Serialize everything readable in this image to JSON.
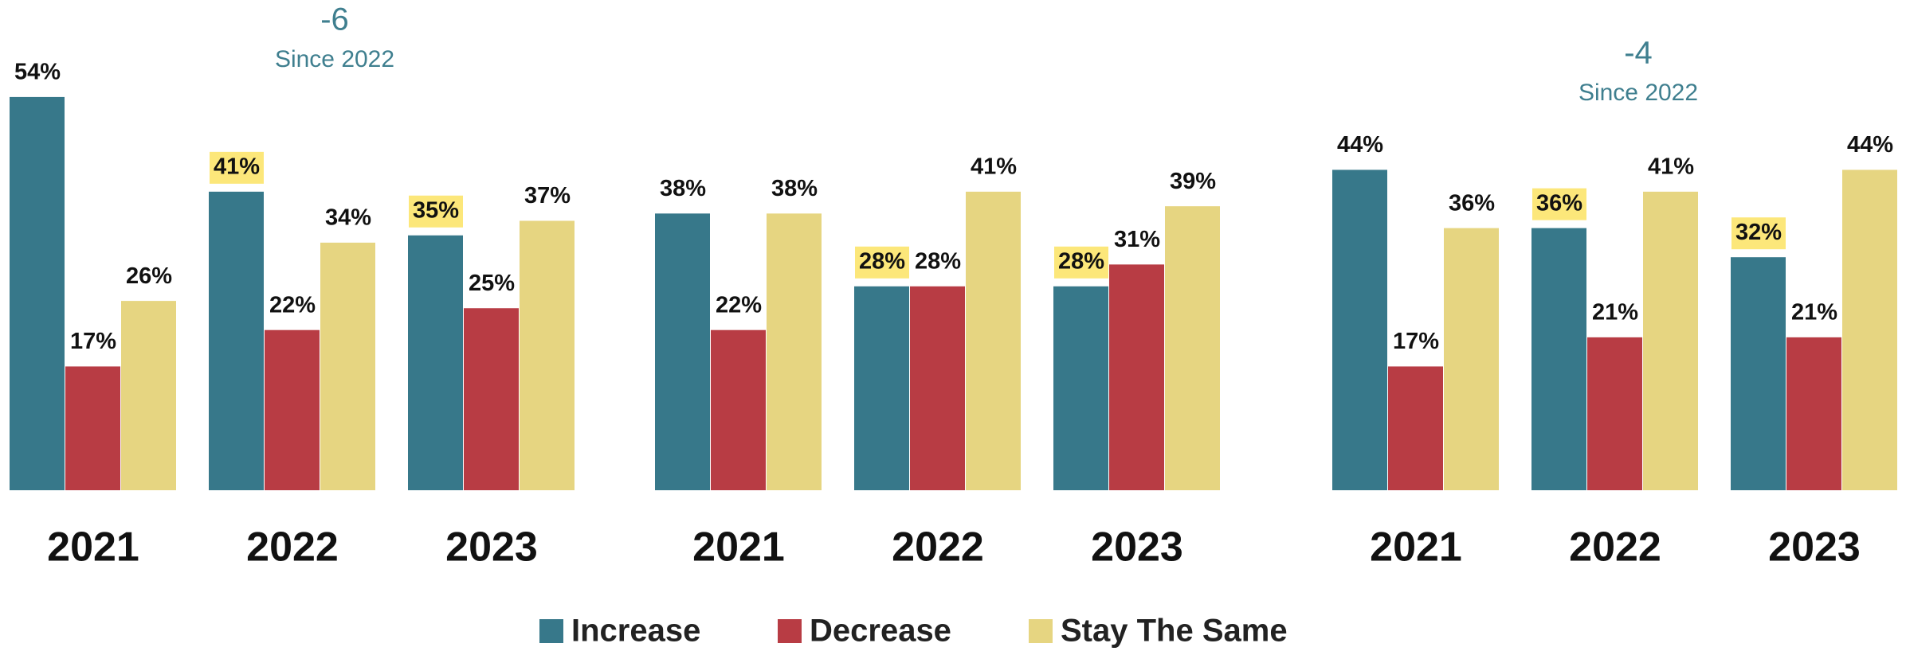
{
  "chart_data": [
    {
      "type": "bar",
      "categories": [
        "2021",
        "2022",
        "2023"
      ],
      "annotation": {
        "value": "-6",
        "note": "Since 2022"
      },
      "series": [
        {
          "name": "Increase",
          "color": "#37788a",
          "values": [
            54,
            41,
            35
          ],
          "value_labels": [
            "54%",
            "41%",
            "35%"
          ],
          "label_highlight": [
            false,
            true,
            true
          ]
        },
        {
          "name": "Decrease",
          "color": "#b83c44",
          "values": [
            17,
            22,
            25
          ],
          "value_labels": [
            "17%",
            "22%",
            "25%"
          ]
        },
        {
          "name": "Stay The Same",
          "color": "#e6d581",
          "values": [
            26,
            34,
            37
          ],
          "value_labels": [
            "26%",
            "34%",
            "37%"
          ]
        }
      ]
    },
    {
      "type": "bar",
      "categories": [
        "2021",
        "2022",
        "2023"
      ],
      "series": [
        {
          "name": "Increase",
          "color": "#37788a",
          "values": [
            38,
            28,
            28
          ],
          "value_labels": [
            "38%",
            "28%",
            "28%"
          ],
          "label_highlight": [
            false,
            true,
            true
          ]
        },
        {
          "name": "Decrease",
          "color": "#b83c44",
          "values": [
            22,
            28,
            31
          ],
          "value_labels": [
            "22%",
            "28%",
            "31%"
          ]
        },
        {
          "name": "Stay The Same",
          "color": "#e6d581",
          "values": [
            38,
            41,
            39
          ],
          "value_labels": [
            "38%",
            "41%",
            "39%"
          ]
        }
      ]
    },
    {
      "type": "bar",
      "categories": [
        "2021",
        "2022",
        "2023"
      ],
      "annotation": {
        "value": "-4",
        "note": "Since 2022"
      },
      "series": [
        {
          "name": "Increase",
          "color": "#37788a",
          "values": [
            44,
            36,
            32
          ],
          "value_labels": [
            "44%",
            "36%",
            "32%"
          ],
          "label_highlight": [
            false,
            true,
            true
          ]
        },
        {
          "name": "Decrease",
          "color": "#b83c44",
          "values": [
            17,
            21,
            21
          ],
          "value_labels": [
            "17%",
            "21%",
            "21%"
          ]
        },
        {
          "name": "Stay The Same",
          "color": "#e6d581",
          "values": [
            36,
            41,
            44
          ],
          "value_labels": [
            "36%",
            "41%",
            "44%"
          ]
        }
      ]
    }
  ]
}
